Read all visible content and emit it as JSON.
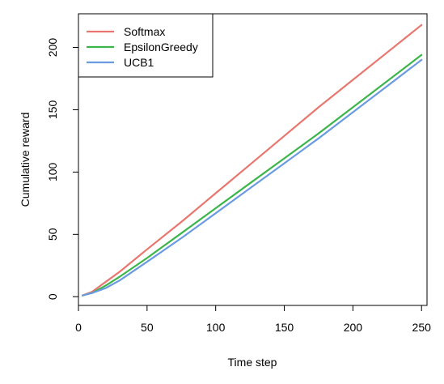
{
  "chart_data": {
    "type": "line",
    "title": "",
    "xlabel": "Time step",
    "ylabel": "Cumulative reward",
    "xlim": [
      0,
      254
    ],
    "ylim": [
      -7,
      227
    ],
    "xticks": [
      0,
      50,
      100,
      150,
      200,
      250
    ],
    "yticks": [
      0,
      50,
      100,
      150,
      200
    ],
    "grid": false,
    "legend_position": "top-left",
    "series": [
      {
        "name": "Softmax",
        "color": "#E8766E",
        "x": [
          3,
          10,
          20,
          30,
          50,
          75,
          100,
          125,
          150,
          175,
          200,
          225,
          250
        ],
        "y": [
          1,
          4,
          12,
          20,
          38,
          60,
          83,
          106,
          129,
          152,
          174,
          196,
          218
        ]
      },
      {
        "name": "EpsilonGreedy",
        "color": "#3CB54A",
        "x": [
          3,
          10,
          20,
          30,
          50,
          75,
          100,
          125,
          150,
          175,
          200,
          225,
          250
        ],
        "y": [
          1,
          3,
          9,
          16,
          31,
          51,
          71,
          91,
          111,
          131,
          152,
          173,
          194
        ]
      },
      {
        "name": "UCB1",
        "color": "#6A9BE0",
        "x": [
          3,
          10,
          20,
          30,
          50,
          75,
          100,
          125,
          150,
          175,
          200,
          225,
          250
        ],
        "y": [
          1,
          3,
          7,
          13,
          28,
          47,
          67,
          87,
          107,
          127,
          148,
          169,
          190
        ]
      }
    ]
  }
}
